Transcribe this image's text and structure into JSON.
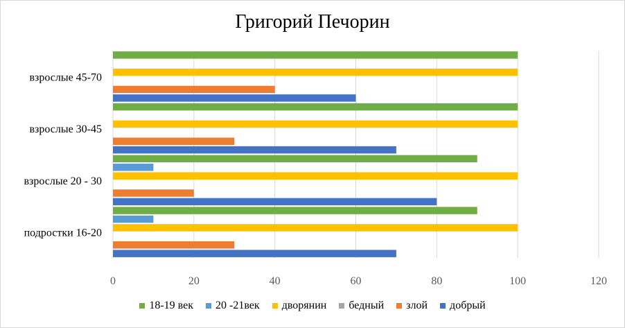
{
  "chart_data": {
    "type": "bar",
    "orientation": "horizontal",
    "title": "Григорий Печорин",
    "categories": [
      "подростки 16-20",
      "взрослые 20 - 30",
      "взрослые 30-45",
      "взрослые 45-70"
    ],
    "xlim": [
      0,
      120
    ],
    "xticks": [
      0,
      20,
      40,
      60,
      80,
      100,
      120
    ],
    "grid": true,
    "legend_position": "bottom",
    "series": [
      {
        "name": "добрый",
        "color": "#4472C4",
        "values": [
          70,
          80,
          70,
          60
        ]
      },
      {
        "name": "злой",
        "color": "#ED7D31",
        "values": [
          30,
          20,
          30,
          40
        ]
      },
      {
        "name": "бедный",
        "color": "#A5A5A5",
        "values": [
          0,
          0,
          0,
          0
        ]
      },
      {
        "name": "дворянин",
        "color": "#FFC000",
        "values": [
          100,
          100,
          100,
          100
        ]
      },
      {
        "name": "20 -21век",
        "color": "#5B9BD5",
        "values": [
          10,
          10,
          0,
          0
        ]
      },
      {
        "name": "18-19 век",
        "color": "#70AD47",
        "values": [
          90,
          90,
          100,
          100
        ]
      }
    ],
    "legend_order": [
      "18-19 век",
      "20 -21век",
      "дворянин",
      "бедный",
      "злой",
      "добрый"
    ]
  }
}
